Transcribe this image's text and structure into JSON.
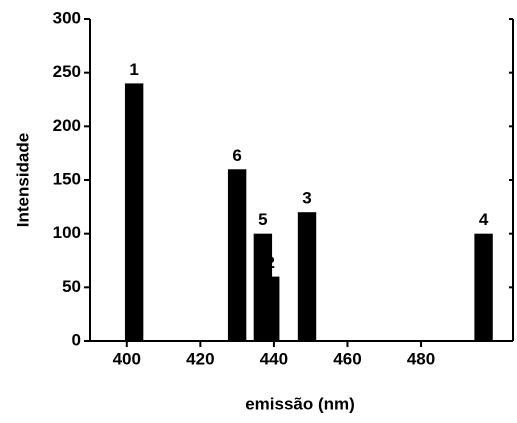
{
  "chart_data": {
    "type": "bar",
    "x_label": "emissão (nm)",
    "y_label": "Intensidade",
    "x": [
      402,
      439,
      449,
      497,
      437,
      430
    ],
    "values": [
      240,
      60,
      120,
      100,
      100,
      160
    ],
    "point_labels": [
      "1",
      "2",
      "3",
      "4",
      "5",
      "6"
    ],
    "color": "#000000",
    "xlim": [
      390,
      505
    ],
    "xticks": [
      400,
      420,
      440,
      460,
      480
    ],
    "ylim": [
      0,
      300
    ],
    "yticks": [
      0,
      50,
      100,
      150,
      200,
      250,
      300
    ],
    "bar_width": 5
  }
}
